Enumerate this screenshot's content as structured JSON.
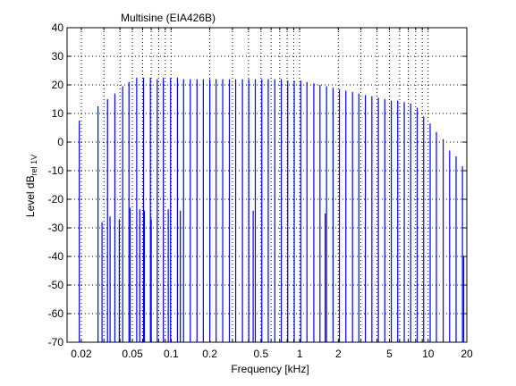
{
  "chart_data": {
    "type": "line",
    "title": "Multisine (EIA426B)",
    "xlabel": "Frequency [kHz]",
    "ylabel": {
      "main": "Level dB",
      "sub": "rel 1V"
    },
    "xscale": "log",
    "xlim": [
      0.0155,
      20
    ],
    "ylim": [
      -70,
      40
    ],
    "x_ticks": [
      {
        "value": 0.02,
        "label": "0.02"
      },
      {
        "value": 0.05,
        "label": "0.05"
      },
      {
        "value": 0.1,
        "label": "0.1"
      },
      {
        "value": 0.2,
        "label": "0.2"
      },
      {
        "value": 0.5,
        "label": "0.5"
      },
      {
        "value": 1,
        "label": "1"
      },
      {
        "value": 2,
        "label": "2"
      },
      {
        "value": 5,
        "label": "5"
      },
      {
        "value": 10,
        "label": "10"
      },
      {
        "value": 20,
        "label": "20"
      }
    ],
    "y_ticks": [
      {
        "value": 40,
        "label": "40"
      },
      {
        "value": 30,
        "label": "30"
      },
      {
        "value": 20,
        "label": "20"
      },
      {
        "value": 10,
        "label": "10"
      },
      {
        "value": 0,
        "label": "0"
      },
      {
        "value": -10,
        "label": "-10"
      },
      {
        "value": -20,
        "label": "-20"
      },
      {
        "value": -30,
        "label": "-30"
      },
      {
        "value": -40,
        "label": "-40"
      },
      {
        "value": -50,
        "label": "-50"
      },
      {
        "value": -60,
        "label": "-60"
      },
      {
        "value": -70,
        "label": "-70"
      }
    ],
    "grid": true,
    "series": [
      {
        "color": "#0000ff",
        "points": [
          {
            "x": 0.0193,
            "y": 7.5
          },
          {
            "x": 0.027,
            "y": 12.5
          },
          {
            "x": 0.032,
            "y": 15.0
          },
          {
            "x": 0.0365,
            "y": 17.0
          },
          {
            "x": 0.042,
            "y": 19.5
          },
          {
            "x": 0.047,
            "y": 21.0
          },
          {
            "x": 0.054,
            "y": 22.5
          },
          {
            "x": 0.061,
            "y": 22.5
          },
          {
            "x": 0.069,
            "y": 22.5
          },
          {
            "x": 0.078,
            "y": 22.0
          },
          {
            "x": 0.087,
            "y": 22.5
          },
          {
            "x": 0.099,
            "y": 22.5
          },
          {
            "x": 0.112,
            "y": 22.5
          },
          {
            "x": 0.125,
            "y": 22.0
          },
          {
            "x": 0.141,
            "y": 22.0
          },
          {
            "x": 0.159,
            "y": 22.0
          },
          {
            "x": 0.178,
            "y": 22.0
          },
          {
            "x": 0.2,
            "y": 22.0
          },
          {
            "x": 0.224,
            "y": 22.0
          },
          {
            "x": 0.252,
            "y": 22.0
          },
          {
            "x": 0.284,
            "y": 22.0
          },
          {
            "x": 0.318,
            "y": 22.0
          },
          {
            "x": 0.359,
            "y": 22.0
          },
          {
            "x": 0.402,
            "y": 22.0
          },
          {
            "x": 0.452,
            "y": 22.0
          },
          {
            "x": 0.508,
            "y": 22.0
          },
          {
            "x": 0.57,
            "y": 22.0
          },
          {
            "x": 0.641,
            "y": 22.0
          },
          {
            "x": 0.72,
            "y": 22.0
          },
          {
            "x": 0.808,
            "y": 21.5
          },
          {
            "x": 0.908,
            "y": 21.5
          },
          {
            "x": 1.02,
            "y": 21.5
          },
          {
            "x": 1.14,
            "y": 21.0
          },
          {
            "x": 1.29,
            "y": 20.5
          },
          {
            "x": 1.44,
            "y": 20.0
          },
          {
            "x": 1.62,
            "y": 19.5
          },
          {
            "x": 1.82,
            "y": 19.0
          },
          {
            "x": 2.04,
            "y": 18.5
          },
          {
            "x": 2.29,
            "y": 18.0
          },
          {
            "x": 2.58,
            "y": 17.5
          },
          {
            "x": 2.89,
            "y": 17.0
          },
          {
            "x": 3.25,
            "y": 16.5
          },
          {
            "x": 3.65,
            "y": 16.0
          },
          {
            "x": 4.1,
            "y": 15.5
          },
          {
            "x": 4.6,
            "y": 15.0
          },
          {
            "x": 5.17,
            "y": 14.5
          },
          {
            "x": 5.8,
            "y": 14.5
          },
          {
            "x": 6.52,
            "y": 14.0
          },
          {
            "x": 7.32,
            "y": 13.5
          },
          {
            "x": 8.22,
            "y": 12.0
          },
          {
            "x": 9.23,
            "y": 9.0
          },
          {
            "x": 10.37,
            "y": 6.5
          },
          {
            "x": 11.6,
            "y": 3.5
          },
          {
            "x": 13.1,
            "y": 1.0
          },
          {
            "x": 14.7,
            "y": -3.0
          },
          {
            "x": 16.5,
            "y": -5.0
          },
          {
            "x": 18.5,
            "y": -8.5
          },
          {
            "x": 18.9,
            "y": -40.0
          }
        ]
      }
    ],
    "interharmonic_dips": [
      {
        "x": 0.029,
        "y": -28
      },
      {
        "x": 0.0335,
        "y": -26
      },
      {
        "x": 0.0395,
        "y": -27
      },
      {
        "x": 0.048,
        "y": -23
      },
      {
        "x": 0.057,
        "y": -23.5
      },
      {
        "x": 0.062,
        "y": -24
      },
      {
        "x": 0.07,
        "y": -27
      },
      {
        "x": 0.095,
        "y": -23.5
      },
      {
        "x": 0.118,
        "y": -24
      },
      {
        "x": 0.435,
        "y": -24
      },
      {
        "x": 1.58,
        "y": -25
      }
    ]
  }
}
